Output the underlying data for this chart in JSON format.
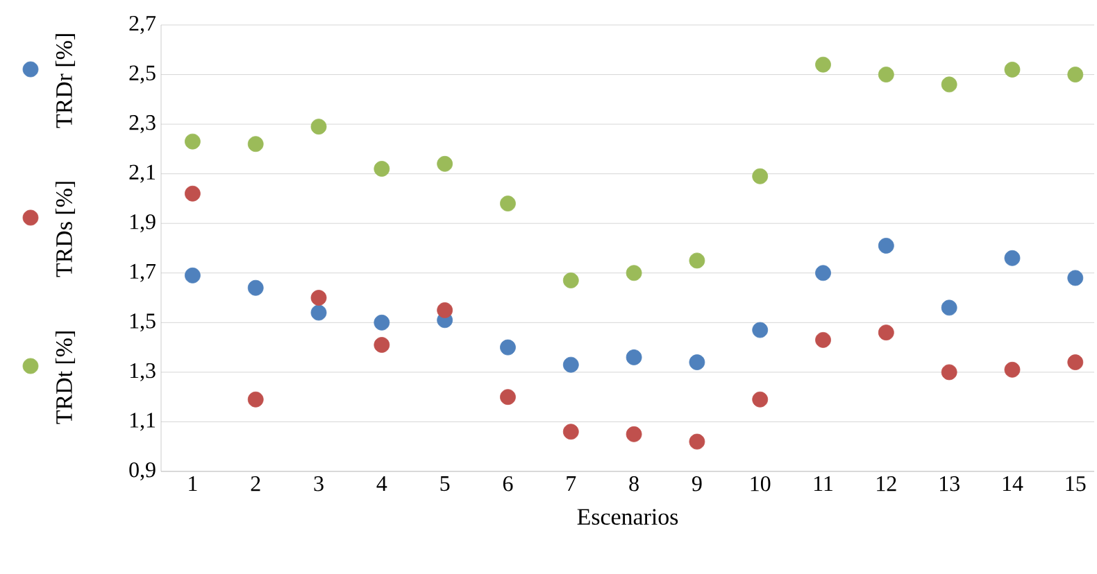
{
  "chart_data": {
    "type": "scatter",
    "xlabel": "Escenarios",
    "x": [
      1,
      2,
      3,
      4,
      5,
      6,
      7,
      8,
      9,
      10,
      11,
      12,
      13,
      14,
      15
    ],
    "series": [
      {
        "name": "TRDr [%]",
        "color": "#4f81bd",
        "values": [
          1.69,
          1.64,
          1.54,
          1.5,
          1.51,
          1.4,
          1.33,
          1.36,
          1.34,
          1.47,
          1.7,
          1.81,
          1.56,
          1.76,
          1.68
        ]
      },
      {
        "name": "TRDs [%]",
        "color": "#c0504d",
        "values": [
          2.02,
          1.19,
          1.6,
          1.41,
          1.55,
          1.2,
          1.06,
          1.05,
          1.02,
          1.19,
          1.43,
          1.46,
          1.3,
          1.31,
          1.34
        ]
      },
      {
        "name": "TRDt [%]",
        "color": "#9bbb59",
        "values": [
          2.23,
          2.22,
          2.29,
          2.12,
          2.14,
          1.98,
          1.67,
          1.7,
          1.75,
          2.09,
          2.54,
          2.5,
          2.46,
          2.52,
          2.5
        ]
      }
    ],
    "xlim": [
      0.5,
      15.3
    ],
    "xticks": [
      1,
      2,
      3,
      4,
      5,
      6,
      7,
      8,
      9,
      10,
      11,
      12,
      13,
      14,
      15
    ],
    "ylim": [
      0.9,
      2.7
    ],
    "yticks": [
      {
        "value": 0.9,
        "label": "0,9"
      },
      {
        "value": 1.1,
        "label": "1,1"
      },
      {
        "value": 1.3,
        "label": "1,3"
      },
      {
        "value": 1.5,
        "label": "1,5"
      },
      {
        "value": 1.7,
        "label": "1,7"
      },
      {
        "value": 1.9,
        "label": "1,9"
      },
      {
        "value": 2.1,
        "label": "2,1"
      },
      {
        "value": 2.3,
        "label": "2,3"
      },
      {
        "value": 2.5,
        "label": "2,5"
      },
      {
        "value": 2.7,
        "label": "2,7"
      }
    ],
    "grid": "y",
    "legend": "left",
    "marker": "circle"
  }
}
